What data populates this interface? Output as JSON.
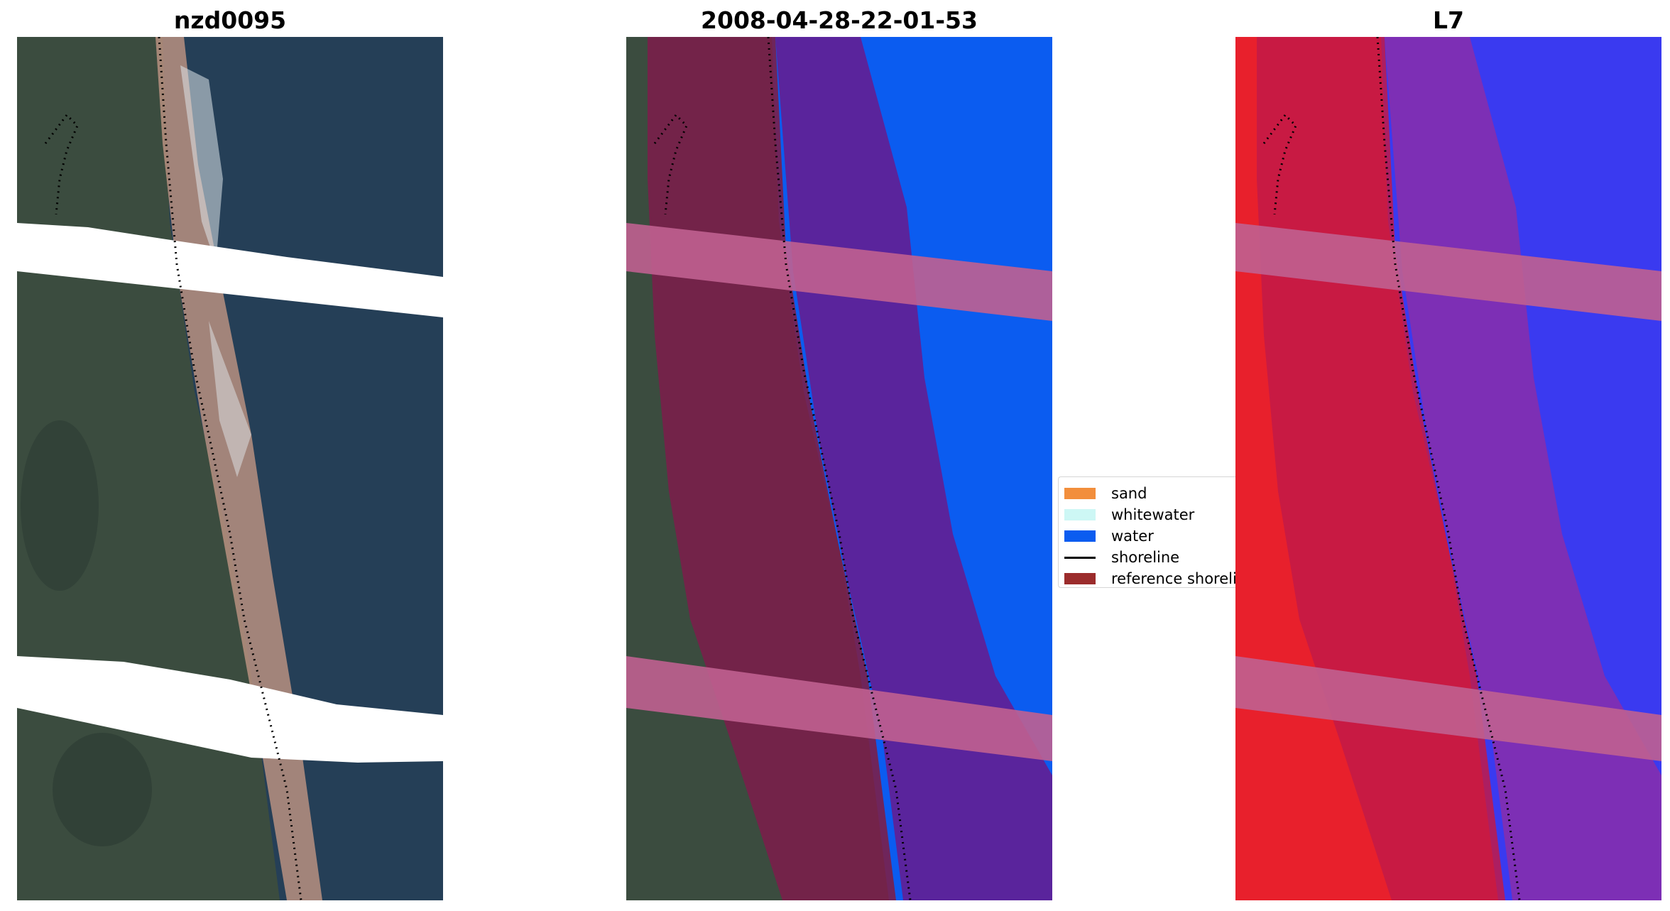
{
  "panels": [
    {
      "title": "nzd0095"
    },
    {
      "title": "2008-04-28-22-01-53"
    },
    {
      "title": "L7"
    }
  ],
  "legend": {
    "items": [
      {
        "label": "sand",
        "color": "#f28e3c",
        "kind": "patch"
      },
      {
        "label": "whitewater",
        "color": "#cdf7f5",
        "kind": "patch"
      },
      {
        "label": "water",
        "color": "#0b5cf0",
        "kind": "patch"
      },
      {
        "label": "shoreline",
        "color": "#000000",
        "kind": "line"
      },
      {
        "label": "reference shoreline",
        "color": "#9b2c2c",
        "kind": "patch"
      }
    ]
  },
  "colors": {
    "sea": "#24425a",
    "land": "#3c4d40",
    "beach": "#b98f7e",
    "water_class": "#0b5cf0",
    "land_overlay": "#7a1f4a",
    "sea_overlay": "#5a249c",
    "cloud_mask": "#c06090",
    "index_red": "#e8202c",
    "index_blue": "#3a3af0"
  }
}
